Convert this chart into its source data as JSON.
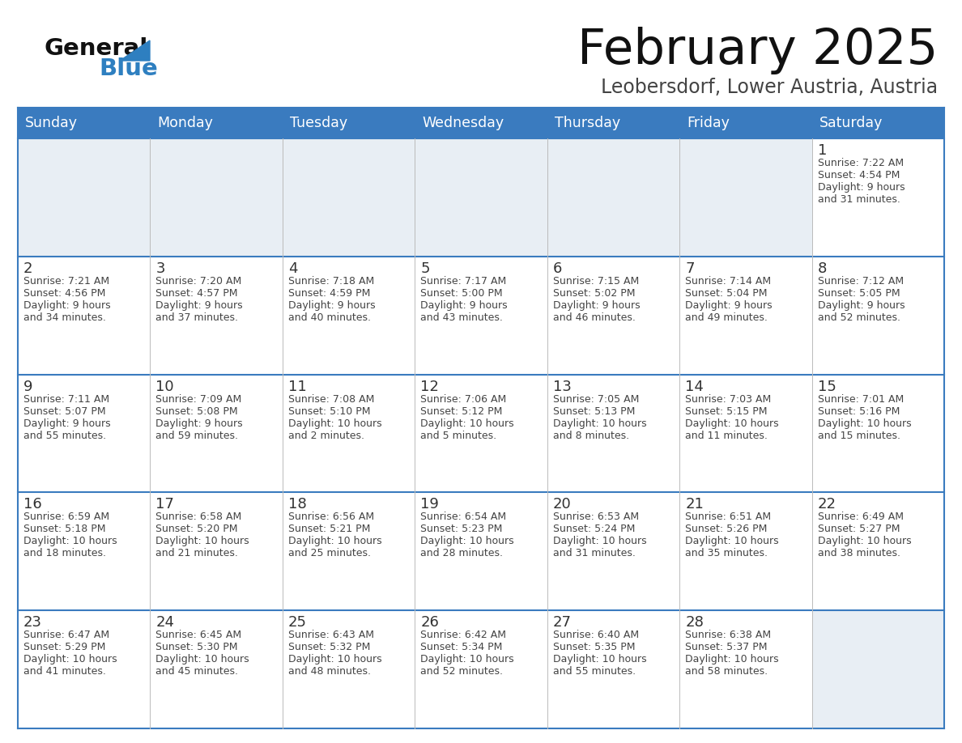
{
  "title": "February 2025",
  "subtitle": "Leobersdorf, Lower Austria, Austria",
  "days_of_week": [
    "Sunday",
    "Monday",
    "Tuesday",
    "Wednesday",
    "Thursday",
    "Friday",
    "Saturday"
  ],
  "header_bg": "#3a7bbf",
  "header_text": "#ffffff",
  "cell_bg_light": "#e8eef4",
  "cell_bg_white": "#ffffff",
  "grid_line_color": "#3a7bbf",
  "text_color": "#444444",
  "day_num_color": "#333333",
  "weeks": [
    [
      {
        "day": null,
        "sunrise": null,
        "sunset": null,
        "daylight": ""
      },
      {
        "day": null,
        "sunrise": null,
        "sunset": null,
        "daylight": ""
      },
      {
        "day": null,
        "sunrise": null,
        "sunset": null,
        "daylight": ""
      },
      {
        "day": null,
        "sunrise": null,
        "sunset": null,
        "daylight": ""
      },
      {
        "day": null,
        "sunrise": null,
        "sunset": null,
        "daylight": ""
      },
      {
        "day": null,
        "sunrise": null,
        "sunset": null,
        "daylight": ""
      },
      {
        "day": 1,
        "sunrise": "7:22 AM",
        "sunset": "4:54 PM",
        "daylight": "9 hours\nand 31 minutes."
      }
    ],
    [
      {
        "day": 2,
        "sunrise": "7:21 AM",
        "sunset": "4:56 PM",
        "daylight": "9 hours\nand 34 minutes."
      },
      {
        "day": 3,
        "sunrise": "7:20 AM",
        "sunset": "4:57 PM",
        "daylight": "9 hours\nand 37 minutes."
      },
      {
        "day": 4,
        "sunrise": "7:18 AM",
        "sunset": "4:59 PM",
        "daylight": "9 hours\nand 40 minutes."
      },
      {
        "day": 5,
        "sunrise": "7:17 AM",
        "sunset": "5:00 PM",
        "daylight": "9 hours\nand 43 minutes."
      },
      {
        "day": 6,
        "sunrise": "7:15 AM",
        "sunset": "5:02 PM",
        "daylight": "9 hours\nand 46 minutes."
      },
      {
        "day": 7,
        "sunrise": "7:14 AM",
        "sunset": "5:04 PM",
        "daylight": "9 hours\nand 49 minutes."
      },
      {
        "day": 8,
        "sunrise": "7:12 AM",
        "sunset": "5:05 PM",
        "daylight": "9 hours\nand 52 minutes."
      }
    ],
    [
      {
        "day": 9,
        "sunrise": "7:11 AM",
        "sunset": "5:07 PM",
        "daylight": "9 hours\nand 55 minutes."
      },
      {
        "day": 10,
        "sunrise": "7:09 AM",
        "sunset": "5:08 PM",
        "daylight": "9 hours\nand 59 minutes."
      },
      {
        "day": 11,
        "sunrise": "7:08 AM",
        "sunset": "5:10 PM",
        "daylight": "10 hours\nand 2 minutes."
      },
      {
        "day": 12,
        "sunrise": "7:06 AM",
        "sunset": "5:12 PM",
        "daylight": "10 hours\nand 5 minutes."
      },
      {
        "day": 13,
        "sunrise": "7:05 AM",
        "sunset": "5:13 PM",
        "daylight": "10 hours\nand 8 minutes."
      },
      {
        "day": 14,
        "sunrise": "7:03 AM",
        "sunset": "5:15 PM",
        "daylight": "10 hours\nand 11 minutes."
      },
      {
        "day": 15,
        "sunrise": "7:01 AM",
        "sunset": "5:16 PM",
        "daylight": "10 hours\nand 15 minutes."
      }
    ],
    [
      {
        "day": 16,
        "sunrise": "6:59 AM",
        "sunset": "5:18 PM",
        "daylight": "10 hours\nand 18 minutes."
      },
      {
        "day": 17,
        "sunrise": "6:58 AM",
        "sunset": "5:20 PM",
        "daylight": "10 hours\nand 21 minutes."
      },
      {
        "day": 18,
        "sunrise": "6:56 AM",
        "sunset": "5:21 PM",
        "daylight": "10 hours\nand 25 minutes."
      },
      {
        "day": 19,
        "sunrise": "6:54 AM",
        "sunset": "5:23 PM",
        "daylight": "10 hours\nand 28 minutes."
      },
      {
        "day": 20,
        "sunrise": "6:53 AM",
        "sunset": "5:24 PM",
        "daylight": "10 hours\nand 31 minutes."
      },
      {
        "day": 21,
        "sunrise": "6:51 AM",
        "sunset": "5:26 PM",
        "daylight": "10 hours\nand 35 minutes."
      },
      {
        "day": 22,
        "sunrise": "6:49 AM",
        "sunset": "5:27 PM",
        "daylight": "10 hours\nand 38 minutes."
      }
    ],
    [
      {
        "day": 23,
        "sunrise": "6:47 AM",
        "sunset": "5:29 PM",
        "daylight": "10 hours\nand 41 minutes."
      },
      {
        "day": 24,
        "sunrise": "6:45 AM",
        "sunset": "5:30 PM",
        "daylight": "10 hours\nand 45 minutes."
      },
      {
        "day": 25,
        "sunrise": "6:43 AM",
        "sunset": "5:32 PM",
        "daylight": "10 hours\nand 48 minutes."
      },
      {
        "day": 26,
        "sunrise": "6:42 AM",
        "sunset": "5:34 PM",
        "daylight": "10 hours\nand 52 minutes."
      },
      {
        "day": 27,
        "sunrise": "6:40 AM",
        "sunset": "5:35 PM",
        "daylight": "10 hours\nand 55 minutes."
      },
      {
        "day": 28,
        "sunrise": "6:38 AM",
        "sunset": "5:37 PM",
        "daylight": "10 hours\nand 58 minutes."
      },
      {
        "day": null,
        "sunrise": null,
        "sunset": null,
        "daylight": ""
      }
    ]
  ]
}
